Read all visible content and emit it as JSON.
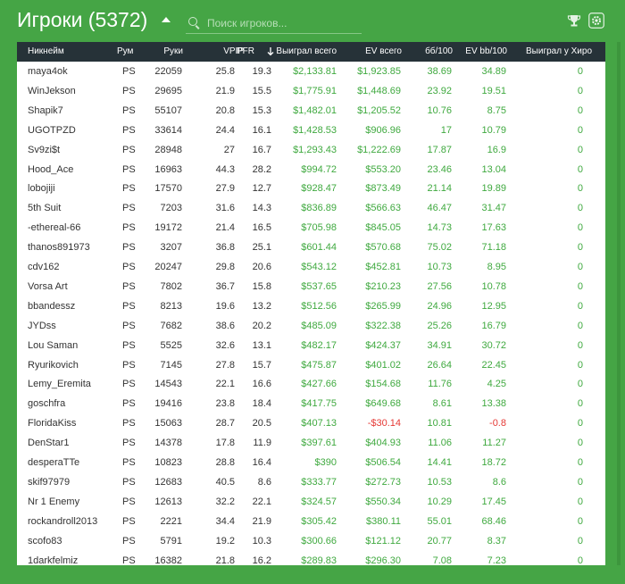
{
  "header": {
    "title": "Игроки (5372)",
    "search_placeholder": "Поиск игроков...",
    "trophy_icon": "trophy-icon",
    "settings_icon": "gear-icon"
  },
  "colors": {
    "background": "#45a545",
    "header_row": "#263238",
    "positive": "#3fa93f",
    "negative": "#e53935"
  },
  "table": {
    "columns": [
      "Никнейм",
      "Рум",
      "Руки",
      "VPIP",
      "PFR",
      "Выиграл всего",
      "EV всего",
      "бб/100",
      "EV bb/100",
      "Выиграл у Хиро"
    ],
    "sorted_column": "Выиграл всего",
    "rows": [
      {
        "nick": "maya4ok",
        "room": "PS",
        "hands": "22059",
        "vpip": "25.8",
        "pfr": "19.3",
        "won": "$2,133.81",
        "ev": "$1,923.85",
        "bb": "38.69",
        "evbb": "34.89",
        "hero": "0"
      },
      {
        "nick": "WinJekson",
        "room": "PS",
        "hands": "29695",
        "vpip": "21.9",
        "pfr": "15.5",
        "won": "$1,775.91",
        "ev": "$1,448.69",
        "bb": "23.92",
        "evbb": "19.51",
        "hero": "0"
      },
      {
        "nick": "Shapik7",
        "room": "PS",
        "hands": "55107",
        "vpip": "20.8",
        "pfr": "15.3",
        "won": "$1,482.01",
        "ev": "$1,205.52",
        "bb": "10.76",
        "evbb": "8.75",
        "hero": "0"
      },
      {
        "nick": "UGOTPZD",
        "room": "PS",
        "hands": "33614",
        "vpip": "24.4",
        "pfr": "16.1",
        "won": "$1,428.53",
        "ev": "$906.96",
        "bb": "17",
        "evbb": "10.79",
        "hero": "0"
      },
      {
        "nick": "Sv9zi$t",
        "room": "PS",
        "hands": "28948",
        "vpip": "27",
        "pfr": "16.7",
        "won": "$1,293.43",
        "ev": "$1,222.69",
        "bb": "17.87",
        "evbb": "16.9",
        "hero": "0"
      },
      {
        "nick": "Hood_Ace",
        "room": "PS",
        "hands": "16963",
        "vpip": "44.3",
        "pfr": "28.2",
        "won": "$994.72",
        "ev": "$553.20",
        "bb": "23.46",
        "evbb": "13.04",
        "hero": "0"
      },
      {
        "nick": "lobojiji",
        "room": "PS",
        "hands": "17570",
        "vpip": "27.9",
        "pfr": "12.7",
        "won": "$928.47",
        "ev": "$873.49",
        "bb": "21.14",
        "evbb": "19.89",
        "hero": "0"
      },
      {
        "nick": "5th Suit",
        "room": "PS",
        "hands": "7203",
        "vpip": "31.6",
        "pfr": "14.3",
        "won": "$836.89",
        "ev": "$566.63",
        "bb": "46.47",
        "evbb": "31.47",
        "hero": "0"
      },
      {
        "nick": "-ethereal-66",
        "room": "PS",
        "hands": "19172",
        "vpip": "21.4",
        "pfr": "16.5",
        "won": "$705.98",
        "ev": "$845.05",
        "bb": "14.73",
        "evbb": "17.63",
        "hero": "0"
      },
      {
        "nick": "thanos891973",
        "room": "PS",
        "hands": "3207",
        "vpip": "36.8",
        "pfr": "25.1",
        "won": "$601.44",
        "ev": "$570.68",
        "bb": "75.02",
        "evbb": "71.18",
        "hero": "0"
      },
      {
        "nick": "cdv162",
        "room": "PS",
        "hands": "20247",
        "vpip": "29.8",
        "pfr": "20.6",
        "won": "$543.12",
        "ev": "$452.81",
        "bb": "10.73",
        "evbb": "8.95",
        "hero": "0"
      },
      {
        "nick": "Vorsa Art",
        "room": "PS",
        "hands": "7802",
        "vpip": "36.7",
        "pfr": "15.8",
        "won": "$537.65",
        "ev": "$210.23",
        "bb": "27.56",
        "evbb": "10.78",
        "hero": "0"
      },
      {
        "nick": "bbandessz",
        "room": "PS",
        "hands": "8213",
        "vpip": "19.6",
        "pfr": "13.2",
        "won": "$512.56",
        "ev": "$265.99",
        "bb": "24.96",
        "evbb": "12.95",
        "hero": "0"
      },
      {
        "nick": "JYDss",
        "room": "PS",
        "hands": "7682",
        "vpip": "38.6",
        "pfr": "20.2",
        "won": "$485.09",
        "ev": "$322.38",
        "bb": "25.26",
        "evbb": "16.79",
        "hero": "0"
      },
      {
        "nick": "Lou Saman",
        "room": "PS",
        "hands": "5525",
        "vpip": "32.6",
        "pfr": "13.1",
        "won": "$482.17",
        "ev": "$424.37",
        "bb": "34.91",
        "evbb": "30.72",
        "hero": "0"
      },
      {
        "nick": "Ryurikovich",
        "room": "PS",
        "hands": "7145",
        "vpip": "27.8",
        "pfr": "15.7",
        "won": "$475.87",
        "ev": "$401.02",
        "bb": "26.64",
        "evbb": "22.45",
        "hero": "0"
      },
      {
        "nick": "Lemy_Eremita",
        "room": "PS",
        "hands": "14543",
        "vpip": "22.1",
        "pfr": "16.6",
        "won": "$427.66",
        "ev": "$154.68",
        "bb": "11.76",
        "evbb": "4.25",
        "hero": "0"
      },
      {
        "nick": "goschfra",
        "room": "PS",
        "hands": "19416",
        "vpip": "23.8",
        "pfr": "18.4",
        "won": "$417.75",
        "ev": "$649.68",
        "bb": "8.61",
        "evbb": "13.38",
        "hero": "0"
      },
      {
        "nick": "FloridaKiss",
        "room": "PS",
        "hands": "15063",
        "vpip": "28.7",
        "pfr": "20.5",
        "won": "$407.13",
        "ev": "-$30.14",
        "bb": "10.81",
        "evbb": "-0.8",
        "hero": "0"
      },
      {
        "nick": "DenStar1",
        "room": "PS",
        "hands": "14378",
        "vpip": "17.8",
        "pfr": "11.9",
        "won": "$397.61",
        "ev": "$404.93",
        "bb": "11.06",
        "evbb": "11.27",
        "hero": "0"
      },
      {
        "nick": "desperaTTe",
        "room": "PS",
        "hands": "10823",
        "vpip": "28.8",
        "pfr": "16.4",
        "won": "$390",
        "ev": "$506.54",
        "bb": "14.41",
        "evbb": "18.72",
        "hero": "0"
      },
      {
        "nick": "skif97979",
        "room": "PS",
        "hands": "12683",
        "vpip": "40.5",
        "pfr": "8.6",
        "won": "$333.77",
        "ev": "$272.73",
        "bb": "10.53",
        "evbb": "8.6",
        "hero": "0"
      },
      {
        "nick": "Nr 1 Enemy",
        "room": "PS",
        "hands": "12613",
        "vpip": "32.2",
        "pfr": "22.1",
        "won": "$324.57",
        "ev": "$550.34",
        "bb": "10.29",
        "evbb": "17.45",
        "hero": "0"
      },
      {
        "nick": "rockandroll2013",
        "room": "PS",
        "hands": "2221",
        "vpip": "34.4",
        "pfr": "21.9",
        "won": "$305.42",
        "ev": "$380.11",
        "bb": "55.01",
        "evbb": "68.46",
        "hero": "0"
      },
      {
        "nick": "scofo83",
        "room": "PS",
        "hands": "5791",
        "vpip": "19.2",
        "pfr": "10.3",
        "won": "$300.66",
        "ev": "$121.12",
        "bb": "20.77",
        "evbb": "8.37",
        "hero": "0"
      },
      {
        "nick": "1darkfelmiz",
        "room": "PS",
        "hands": "16382",
        "vpip": "21.8",
        "pfr": "16.2",
        "won": "$289.83",
        "ev": "$296.30",
        "bb": "7.08",
        "evbb": "7.23",
        "hero": "0"
      }
    ]
  }
}
